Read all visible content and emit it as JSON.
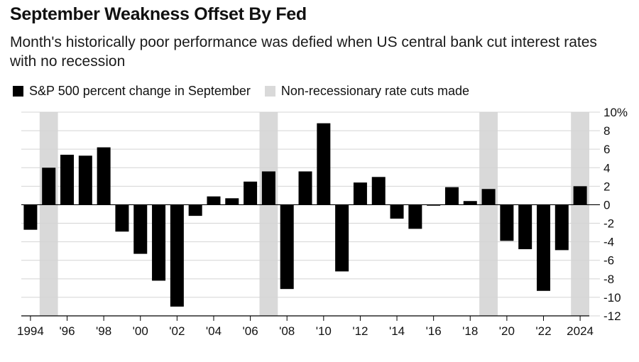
{
  "chart_data": {
    "type": "bar",
    "title": "September Weakness Offset By Fed",
    "subtitle": "Month's historically poor performance was defied when US central bank cut interest rates with no recession",
    "legend": [
      {
        "label": "S&P 500 percent change in September",
        "color": "#000000"
      },
      {
        "label": "Non-recessionary rate cuts made",
        "color": "#d9d9d9"
      }
    ],
    "categories": [
      1994,
      1995,
      1996,
      1997,
      1998,
      1999,
      2000,
      2001,
      2002,
      2003,
      2004,
      2005,
      2006,
      2007,
      2008,
      2009,
      2010,
      2011,
      2012,
      2013,
      2014,
      2015,
      2016,
      2017,
      2018,
      2019,
      2020,
      2021,
      2022,
      2023,
      2024
    ],
    "values": [
      -2.7,
      4.0,
      5.4,
      5.3,
      6.2,
      -2.9,
      -5.3,
      -8.2,
      -11.0,
      -1.2,
      0.9,
      0.7,
      2.5,
      3.6,
      -9.1,
      3.6,
      8.8,
      -7.2,
      2.4,
      3.0,
      -1.5,
      -2.6,
      -0.1,
      1.9,
      0.4,
      1.7,
      -3.9,
      -4.8,
      -9.3,
      -4.9,
      2.0
    ],
    "highlight_years": [
      1995,
      2007,
      2019,
      2024
    ],
    "x_tick_labels": [
      "1994",
      "'96",
      "'98",
      "'00",
      "'02",
      "'04",
      "'06",
      "'08",
      "'10",
      "'12",
      "'14",
      "'16",
      "'18",
      "'20",
      "'22",
      "2024"
    ],
    "y_tick_labels": [
      "10%",
      "8",
      "6",
      "4",
      "2",
      "0",
      "-2",
      "-4",
      "-6",
      "-8",
      "-10",
      "-12"
    ],
    "y_tick_values": [
      10,
      8,
      6,
      4,
      2,
      0,
      -2,
      -4,
      -6,
      -8,
      -10,
      -12
    ],
    "ylim": [
      -12,
      10
    ],
    "grid": true
  }
}
